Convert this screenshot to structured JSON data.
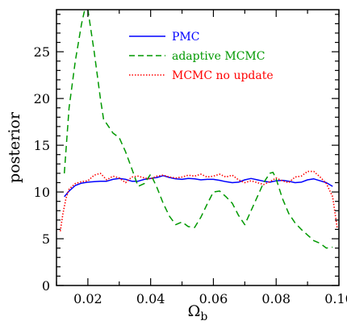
{
  "chart_data": {
    "type": "line",
    "title": "",
    "xlabel": "Ω",
    "xlabel_sub": "b",
    "ylabel": "posterior",
    "xlim": [
      0.01,
      0.1
    ],
    "ylim": [
      0,
      29.5
    ],
    "x_ticks": [
      0.02,
      0.04,
      0.06,
      0.08,
      0.1
    ],
    "x_tick_labels": [
      "0.02",
      "0.04",
      "0.06",
      "0.08",
      "0.10"
    ],
    "x_minor_ticks": [
      0.01,
      0.03,
      0.05,
      0.07,
      0.09
    ],
    "y_ticks": [
      0,
      5,
      10,
      15,
      20,
      25
    ],
    "y_tick_labels": [
      "0",
      "5",
      "10",
      "15",
      "20",
      "25"
    ],
    "y_minor_ticks": [
      1,
      2,
      3,
      4,
      6,
      7,
      8,
      9,
      11,
      12,
      13,
      14,
      16,
      17,
      18,
      19,
      21,
      22,
      23,
      24,
      26,
      27,
      28,
      29
    ],
    "grid": false,
    "legend_position": "top-center",
    "series": [
      {
        "name": "PMC",
        "color": "#0000ff",
        "style": "solid",
        "x": [
          0.0125,
          0.014,
          0.016,
          0.018,
          0.02,
          0.022,
          0.024,
          0.026,
          0.028,
          0.03,
          0.032,
          0.034,
          0.036,
          0.038,
          0.04,
          0.042,
          0.044,
          0.046,
          0.048,
          0.05,
          0.052,
          0.054,
          0.056,
          0.058,
          0.06,
          0.062,
          0.064,
          0.066,
          0.068,
          0.07,
          0.072,
          0.074,
          0.076,
          0.078,
          0.08,
          0.082,
          0.084,
          0.086,
          0.088,
          0.09,
          0.092,
          0.094,
          0.096,
          0.098
        ],
        "y": [
          9.5,
          10.1,
          10.7,
          10.95,
          11.05,
          11.1,
          11.15,
          11.15,
          11.35,
          11.45,
          11.35,
          11.15,
          11.15,
          11.35,
          11.45,
          11.55,
          11.75,
          11.55,
          11.4,
          11.35,
          11.45,
          11.4,
          11.3,
          11.35,
          11.35,
          11.25,
          11.1,
          11.0,
          11.05,
          11.3,
          11.45,
          11.3,
          11.15,
          11.05,
          11.2,
          11.25,
          11.15,
          11.0,
          11.05,
          11.3,
          11.4,
          11.2,
          11.0,
          10.6
        ]
      },
      {
        "name": "adaptive MCMC",
        "color": "#009900",
        "style": "dashed",
        "x": [
          0.0125,
          0.014,
          0.016,
          0.018,
          0.019,
          0.02,
          0.022,
          0.024,
          0.025,
          0.026,
          0.028,
          0.03,
          0.032,
          0.034,
          0.036,
          0.038,
          0.04,
          0.042,
          0.044,
          0.046,
          0.048,
          0.05,
          0.052,
          0.054,
          0.056,
          0.058,
          0.06,
          0.062,
          0.064,
          0.066,
          0.068,
          0.07,
          0.072,
          0.074,
          0.076,
          0.078,
          0.079,
          0.08,
          0.082,
          0.084,
          0.086,
          0.088,
          0.09,
          0.092,
          0.094,
          0.096,
          0.098
        ],
        "y": [
          12.0,
          19.0,
          24.0,
          28.0,
          29.5,
          29.5,
          25.0,
          20.0,
          17.8,
          17.3,
          16.3,
          15.8,
          14.3,
          12.5,
          10.6,
          10.9,
          11.9,
          10.5,
          8.8,
          7.4,
          6.5,
          6.8,
          6.3,
          6.2,
          7.3,
          8.7,
          10.0,
          10.1,
          9.5,
          8.8,
          7.5,
          6.5,
          8.0,
          9.5,
          11.0,
          12.0,
          12.1,
          11.4,
          9.3,
          7.7,
          6.7,
          6.0,
          5.4,
          4.8,
          4.5,
          4.0,
          4.1
        ]
      },
      {
        "name": "MCMC no update",
        "color": "#ff0000",
        "style": "dotted",
        "x": [
          0.0112,
          0.012,
          0.013,
          0.014,
          0.016,
          0.018,
          0.02,
          0.022,
          0.024,
          0.026,
          0.028,
          0.03,
          0.032,
          0.034,
          0.036,
          0.038,
          0.04,
          0.042,
          0.044,
          0.046,
          0.048,
          0.05,
          0.052,
          0.054,
          0.056,
          0.058,
          0.06,
          0.062,
          0.064,
          0.066,
          0.068,
          0.07,
          0.072,
          0.074,
          0.076,
          0.078,
          0.08,
          0.082,
          0.084,
          0.086,
          0.088,
          0.09,
          0.092,
          0.094,
          0.096,
          0.098,
          0.0995
        ],
        "y": [
          5.8,
          7.6,
          9.3,
          10.3,
          10.9,
          11.1,
          11.2,
          11.8,
          12.0,
          11.3,
          11.7,
          11.5,
          11.0,
          11.6,
          11.7,
          11.5,
          11.4,
          11.7,
          11.8,
          11.6,
          11.5,
          11.6,
          11.8,
          11.7,
          11.9,
          11.6,
          11.7,
          11.9,
          11.6,
          11.8,
          11.3,
          11.0,
          11.2,
          11.0,
          10.8,
          11.1,
          11.5,
          11.2,
          11.0,
          11.6,
          11.7,
          12.2,
          12.2,
          11.6,
          10.9,
          9.5,
          6.0
        ]
      }
    ]
  }
}
